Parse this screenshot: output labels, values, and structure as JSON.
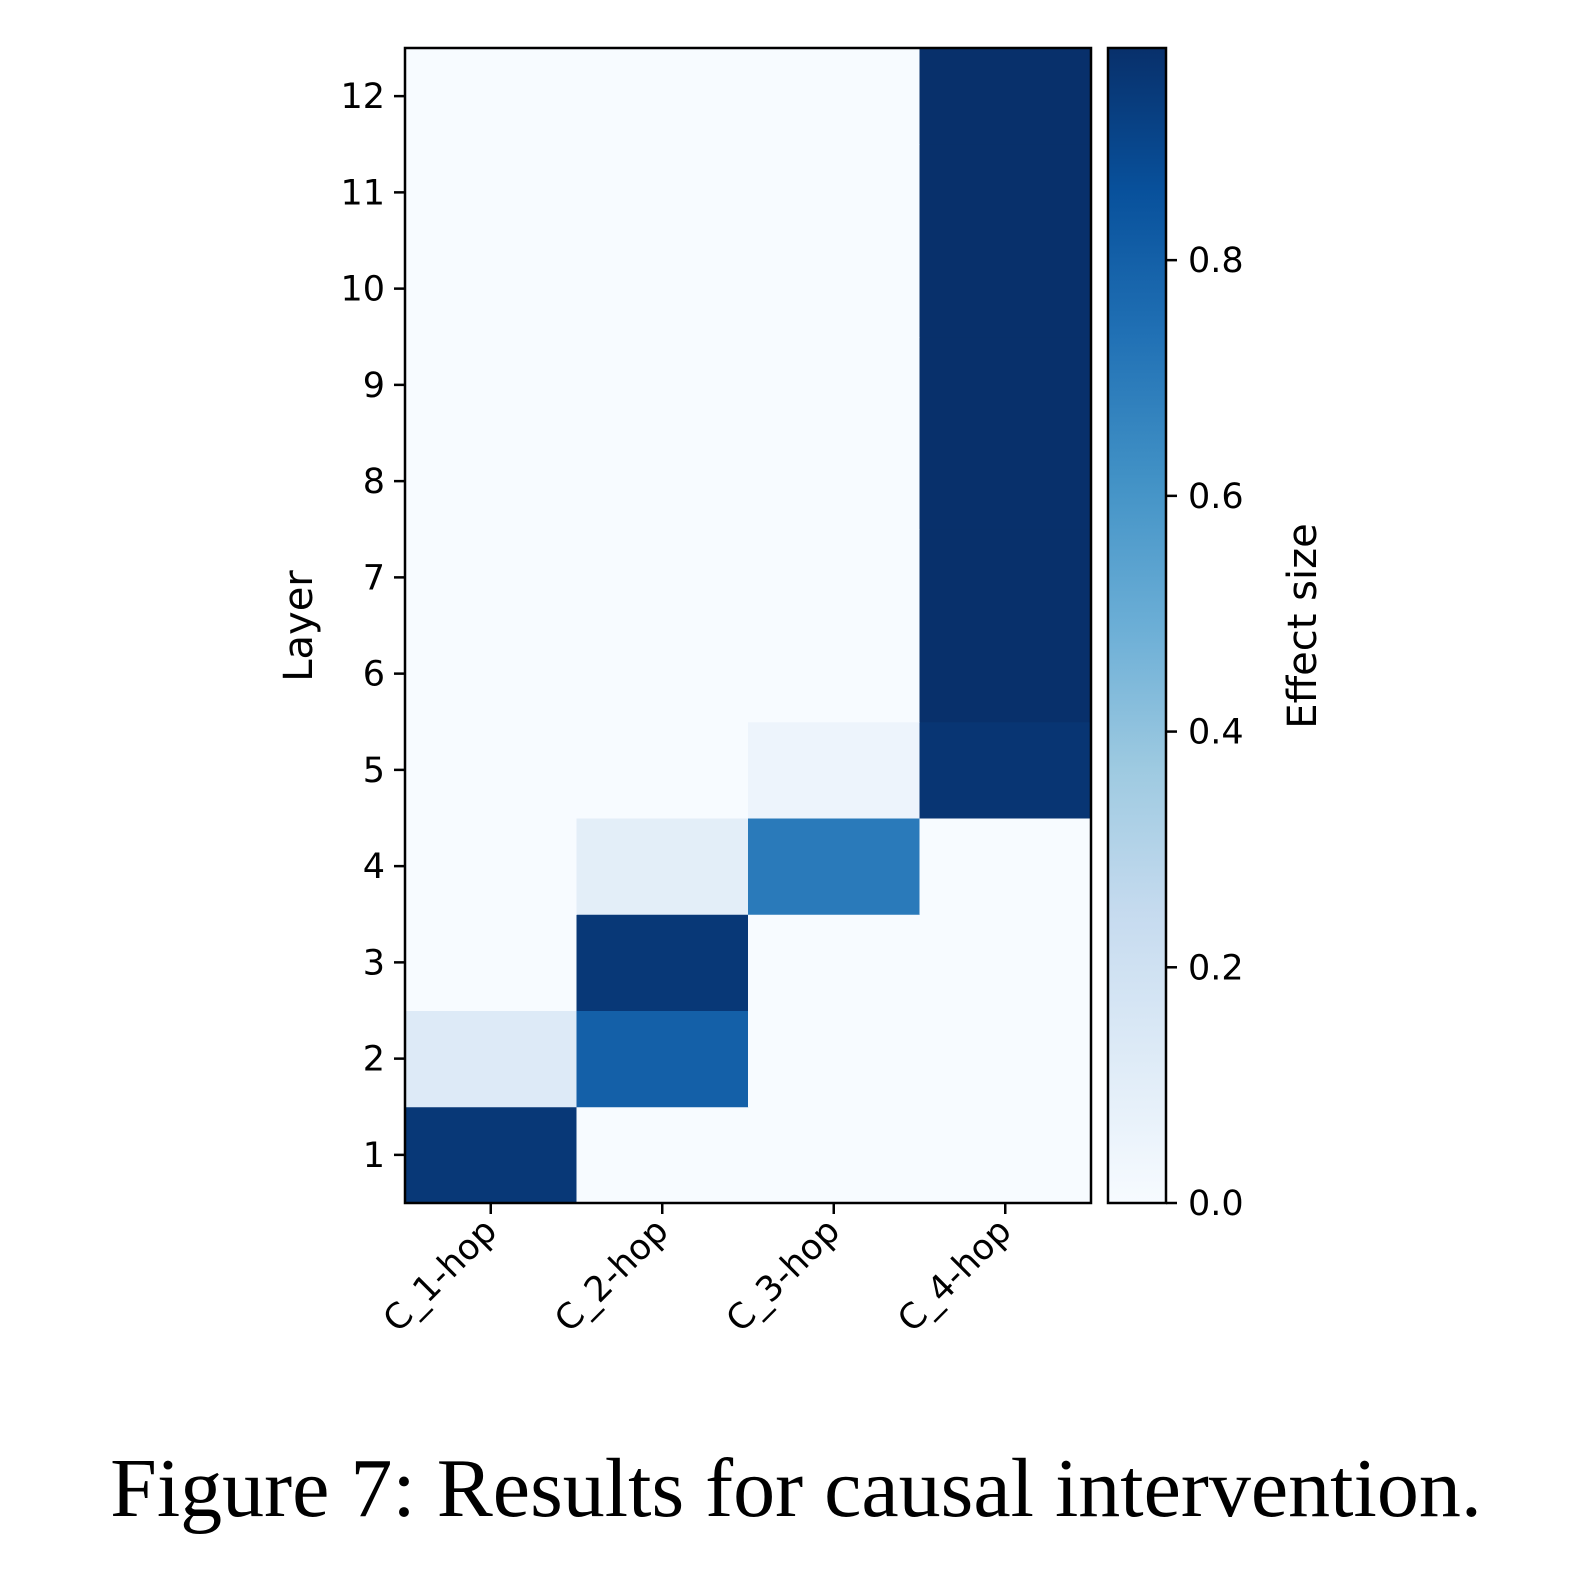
{
  "chart_data": {
    "type": "heatmap",
    "x_categories": [
      "C_1-hop",
      "C_2-hop",
      "C_3-hop",
      "C_4-hop"
    ],
    "y_categories": [
      "1",
      "2",
      "3",
      "4",
      "5",
      "6",
      "7",
      "8",
      "9",
      "10",
      "11",
      "12"
    ],
    "ylabel": "Layer",
    "values": [
      [
        0.95,
        0.0,
        0.0,
        0.0
      ],
      [
        0.13,
        0.8,
        0.0,
        0.0
      ],
      [
        0.0,
        0.95,
        0.0,
        0.0
      ],
      [
        0.0,
        0.1,
        0.7,
        0.0
      ],
      [
        0.0,
        0.0,
        0.05,
        0.96
      ],
      [
        0.0,
        0.0,
        0.0,
        1.0
      ],
      [
        0.0,
        0.0,
        0.0,
        1.0
      ],
      [
        0.0,
        0.0,
        0.0,
        1.0
      ],
      [
        0.0,
        0.0,
        0.0,
        1.0
      ],
      [
        0.0,
        0.0,
        0.0,
        1.0
      ],
      [
        0.0,
        0.0,
        0.0,
        1.0
      ],
      [
        0.0,
        0.0,
        0.0,
        1.0
      ]
    ],
    "colorbar": {
      "label": "Effect size",
      "colormap": "Blues",
      "range": [
        0,
        0.98
      ],
      "ticks": [
        "0.0",
        "0.2",
        "0.4",
        "0.6",
        "0.8"
      ],
      "tick_values": [
        0.0,
        0.2,
        0.4,
        0.6,
        0.8
      ]
    }
  },
  "caption": "Figure 7: Results for causal intervention."
}
